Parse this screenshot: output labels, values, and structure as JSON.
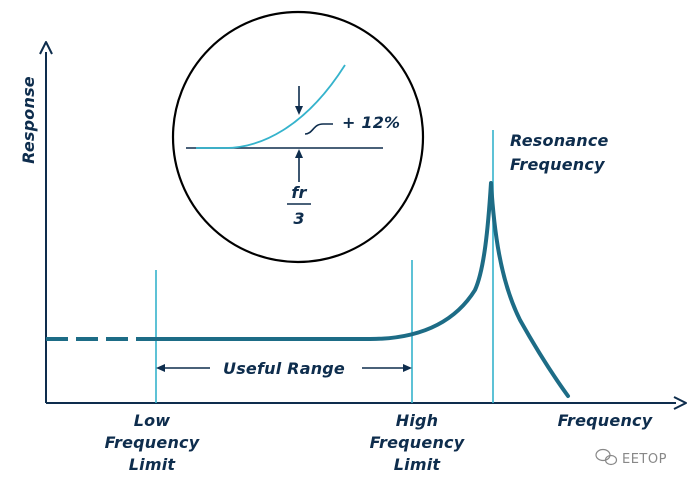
{
  "labels": {
    "y_axis": "Response",
    "x_axis": "Frequency",
    "resonance_line1": "Resonance",
    "resonance_line2": "Frequency",
    "low_limit_line1": "Low",
    "low_limit_line2": "Frequency",
    "low_limit_line3": "Limit",
    "high_limit_line1": "High",
    "high_limit_line2": "Frequency",
    "high_limit_line3": "Limit",
    "useful_range": "Useful Range"
  },
  "inset": {
    "deviation": "+ 12%",
    "fraction_numerator": "fr",
    "fraction_denominator": "3"
  },
  "watermark": {
    "text": "EETOP"
  },
  "colors": {
    "curve": "#1d6c86",
    "guide": "#35b3cc",
    "ink": "#0e2d4d",
    "watermark": "#888888"
  }
}
